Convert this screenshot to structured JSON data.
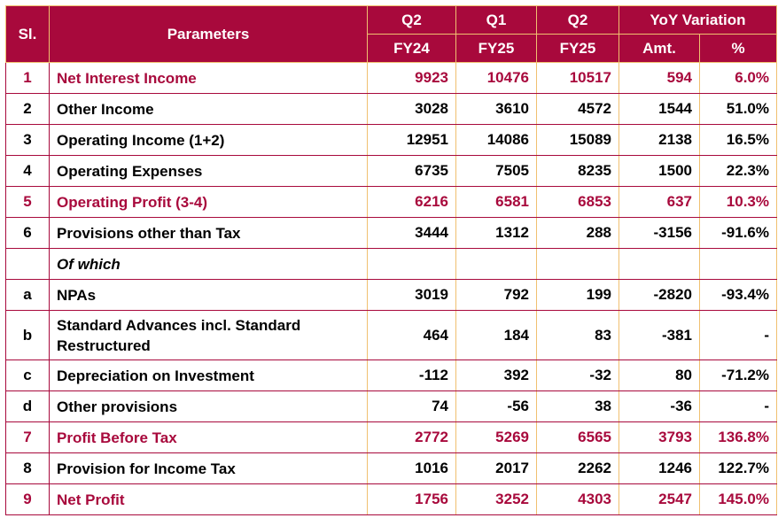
{
  "header": {
    "sl": "Sl.",
    "parameters": "Parameters",
    "q2a_top": "Q2",
    "q2a_bottom": "FY24",
    "q1_top": "Q1",
    "q1_bottom": "FY25",
    "q2b_top": "Q2",
    "q2b_bottom": "FY25",
    "yoy": "YoY Variation",
    "amt": "Amt.",
    "pct": "%"
  },
  "rows": [
    {
      "sl": "1",
      "param": "Net Interest Income",
      "q2a": "9923",
      "q1": "10476",
      "q2b": "10517",
      "amt": "594",
      "pct": "6.0%"
    },
    {
      "sl": "2",
      "param": "Other Income",
      "q2a": "3028",
      "q1": "3610",
      "q2b": "4572",
      "amt": "1544",
      "pct": "51.0%"
    },
    {
      "sl": "3",
      "param": "Operating Income (1+2)",
      "q2a": "12951",
      "q1": "14086",
      "q2b": "15089",
      "amt": "2138",
      "pct": "16.5%"
    },
    {
      "sl": "4",
      "param": "Operating Expenses",
      "q2a": "6735",
      "q1": "7505",
      "q2b": "8235",
      "amt": "1500",
      "pct": "22.3%"
    },
    {
      "sl": "5",
      "param": "Operating Profit (3-4)",
      "q2a": "6216",
      "q1": "6581",
      "q2b": "6853",
      "amt": "637",
      "pct": "10.3%"
    },
    {
      "sl": "6",
      "param": "Provisions other than Tax",
      "q2a": "3444",
      "q1": "1312",
      "q2b": "288",
      "amt": "-3156",
      "pct": "-91.6%"
    },
    {
      "sl": "",
      "param": "Of which",
      "q2a": "",
      "q1": "",
      "q2b": "",
      "amt": "",
      "pct": ""
    },
    {
      "sl": "a",
      "param": "NPAs",
      "q2a": "3019",
      "q1": "792",
      "q2b": "199",
      "amt": "-2820",
      "pct": "-93.4%"
    },
    {
      "sl": "b",
      "param": "Standard Advances incl. Standard Restructured",
      "q2a": "464",
      "q1": "184",
      "q2b": "83",
      "amt": "-381",
      "pct": "-"
    },
    {
      "sl": "c",
      "param": "Depreciation on Investment",
      "q2a": "-112",
      "q1": "392",
      "q2b": "-32",
      "amt": "80",
      "pct": "-71.2%"
    },
    {
      "sl": "d",
      "param": "Other provisions",
      "q2a": "74",
      "q1": "-56",
      "q2b": "38",
      "amt": "-36",
      "pct": "-"
    },
    {
      "sl": "7",
      "param": "Profit Before Tax",
      "q2a": "2772",
      "q1": "5269",
      "q2b": "6565",
      "amt": "3793",
      "pct": "136.8%"
    },
    {
      "sl": "8",
      "param": "Provision for Income Tax",
      "q2a": "1016",
      "q1": "2017",
      "q2b": "2262",
      "amt": "1246",
      "pct": "122.7%"
    },
    {
      "sl": "9",
      "param": "Net Profit",
      "q2a": "1756",
      "q1": "3252",
      "q2b": "4303",
      "amt": "2547",
      "pct": "145.0%"
    }
  ]
}
